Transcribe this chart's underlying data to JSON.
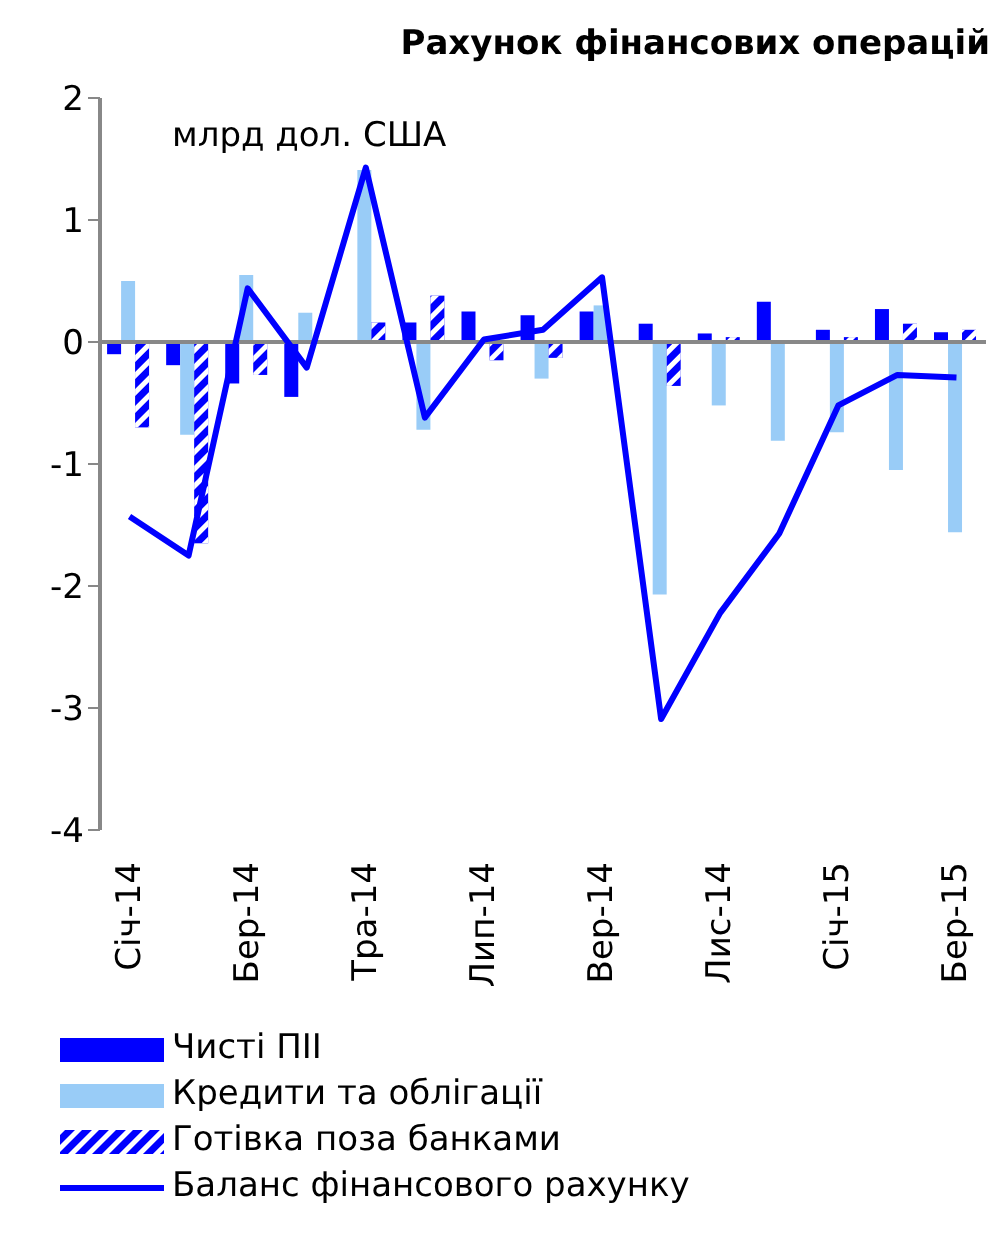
{
  "chart_data": {
    "type": "bar",
    "title": "Рахунок фінансових операцій",
    "annotations": [
      "млрд дол. США"
    ],
    "categories": [
      "Січ-14",
      null,
      "Бер-14",
      null,
      "Тра-14",
      null,
      "Лип-14",
      null,
      "Вер-14",
      null,
      "Лис-14",
      null,
      "Січ-15",
      null,
      "Бер-15"
    ],
    "series": [
      {
        "name": "Чисті ПІІ",
        "color": "#0000ff",
        "values": [
          -0.1,
          -0.19,
          -0.34,
          -0.45,
          null,
          0.16,
          0.25,
          0.22,
          0.25,
          0.15,
          0.07,
          0.33,
          0.1,
          0.27,
          0.08
        ]
      },
      {
        "name": "Кредити та облігації",
        "color": "#99ccf7",
        "values": [
          0.5,
          -0.76,
          0.55,
          0.24,
          1.41,
          -0.72,
          null,
          -0.3,
          0.3,
          -2.07,
          -0.52,
          -0.81,
          -0.74,
          -1.05,
          -1.56
        ]
      },
      {
        "name": "Готівка поза банками",
        "color": "#0000ff",
        "values": [
          -0.7,
          -1.65,
          -0.27,
          null,
          0.16,
          0.38,
          -0.15,
          -0.13,
          0.0,
          -0.36,
          0.04,
          0.0,
          0.04,
          0.15,
          0.1
        ]
      },
      {
        "name": "Баланс фінансового рахунку",
        "type": "line",
        "color": "#0000ff",
        "values": [
          -1.43,
          -1.75,
          0.44,
          -0.21,
          1.43,
          -0.62,
          0.02,
          0.1,
          0.53,
          -3.09,
          -2.22,
          -1.57,
          -0.52,
          -0.27,
          -0.29
        ]
      }
    ],
    "ylim": [
      -4,
      2
    ],
    "yticks": [
      -4,
      -3,
      -2,
      -1,
      0,
      1,
      2
    ],
    "ref_lines": [
      {
        "axis": "y",
        "value": 0,
        "color": "#888888"
      }
    ],
    "legend": "bottom left",
    "marker": "none"
  }
}
